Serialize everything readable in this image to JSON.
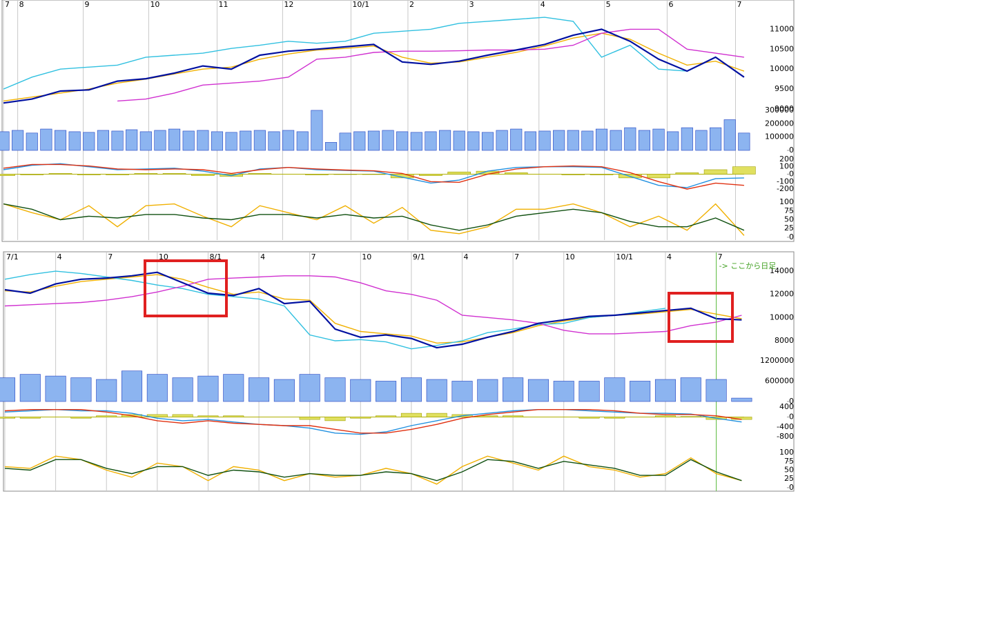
{
  "chart_data": [
    {
      "type": "line",
      "xlim": [
        0,
        277
      ],
      "ylim": [
        9000,
        11700
      ],
      "yticks": [
        9000,
        9500,
        10000,
        10500,
        11000
      ],
      "xticks": [
        {
          "value": 0,
          "label": "7"
        },
        {
          "value": 5,
          "label": "8"
        },
        {
          "value": 28,
          "label": "9"
        },
        {
          "value": 51,
          "label": "10"
        },
        {
          "value": 75,
          "label": "11"
        },
        {
          "value": 98,
          "label": "12"
        },
        {
          "value": 122,
          "label": "10/1"
        },
        {
          "value": 142,
          "label": "2"
        },
        {
          "value": 163,
          "label": "3"
        },
        {
          "value": 188,
          "label": "4"
        },
        {
          "value": 211,
          "label": "5"
        },
        {
          "value": 233,
          "label": "6"
        },
        {
          "value": 257,
          "label": "7"
        }
      ],
      "x": [
        0,
        10,
        20,
        30,
        40,
        50,
        60,
        70,
        80,
        90,
        100,
        110,
        120,
        130,
        140,
        150,
        160,
        170,
        180,
        190,
        200,
        210,
        220,
        230,
        240,
        250,
        260
      ],
      "series": [
        {
          "color": "#f0b000",
          "values": [
            9200,
            9300,
            9400,
            9500,
            9650,
            9750,
            9880,
            10000,
            10050,
            10250,
            10380,
            10480,
            10520,
            10580,
            10300,
            10150,
            10180,
            10300,
            10420,
            10580,
            10780,
            10900,
            10750,
            10400,
            10100,
            10200,
            9950
          ]
        },
        {
          "color": "#30c0e0",
          "values": [
            9500,
            9800,
            10000,
            10050,
            10100,
            10300,
            10350,
            10400,
            10520,
            10600,
            10700,
            10650,
            10700,
            10900,
            10950,
            11000,
            11150,
            11200,
            11250,
            11300,
            11200,
            10300,
            10600,
            10000,
            9950,
            null,
            null
          ]
        },
        {
          "color": "#d030d0",
          "values": [
            null,
            null,
            null,
            null,
            9200,
            9250,
            9400,
            9600,
            9650,
            9700,
            9800,
            10250,
            10300,
            10420,
            10450,
            10450,
            10460,
            10480,
            10480,
            10500,
            10600,
            10900,
            11000,
            11000,
            10500,
            10400,
            10300
          ]
        },
        {
          "color": "#0010a0",
          "values": [
            9150,
            9250,
            9450,
            9480,
            9700,
            9760,
            9900,
            10080,
            10000,
            10350,
            10450,
            10500,
            10560,
            10620,
            10180,
            10120,
            10200,
            10350,
            10480,
            10620,
            10850,
            11000,
            10700,
            10250,
            9950,
            10300,
            9800
          ]
        }
      ]
    },
    {
      "type": "bar",
      "xlim": [
        0,
        277
      ],
      "ylim": [
        0,
        310000
      ],
      "yticks": [
        0,
        100000,
        200000,
        300000
      ],
      "x": [
        0,
        5,
        10,
        15,
        20,
        25,
        30,
        35,
        40,
        45,
        50,
        55,
        60,
        65,
        70,
        75,
        80,
        85,
        90,
        95,
        100,
        105,
        110,
        115,
        120,
        125,
        130,
        135,
        140,
        145,
        150,
        155,
        160,
        165,
        170,
        175,
        180,
        185,
        190,
        195,
        200,
        205,
        210,
        215,
        220,
        225,
        230,
        235,
        240,
        245,
        250,
        255,
        260
      ],
      "series": [
        {
          "color": "#8cb4f0",
          "values": [
            140000,
            150000,
            130000,
            160000,
            150000,
            140000,
            135000,
            150000,
            145000,
            155000,
            140000,
            150000,
            160000,
            145000,
            150000,
            140000,
            135000,
            145000,
            150000,
            140000,
            150000,
            140000,
            300000,
            60000,
            130000,
            140000,
            145000,
            150000,
            140000,
            135000,
            140000,
            150000,
            145000,
            140000,
            135000,
            150000,
            160000,
            140000,
            145000,
            150000,
            150000,
            145000,
            160000,
            150000,
            170000,
            150000,
            160000,
            140000,
            170000,
            150000,
            170000,
            230000,
            130000
          ]
        }
      ]
    },
    {
      "type": "line",
      "xlim": [
        0,
        277
      ],
      "ylim": [
        -255,
        245
      ],
      "yticks": [
        -200,
        -100,
        0,
        100,
        200
      ],
      "x": [
        0,
        10,
        20,
        30,
        40,
        50,
        60,
        70,
        80,
        90,
        100,
        110,
        120,
        130,
        140,
        150,
        160,
        170,
        180,
        190,
        200,
        210,
        220,
        230,
        240,
        250,
        260
      ],
      "series": [
        {
          "type": "bar",
          "color": "#e0e060",
          "values": [
            -20,
            -10,
            10,
            -10,
            -10,
            10,
            10,
            -20,
            -30,
            10,
            0,
            -10,
            -5,
            -5,
            -50,
            -20,
            30,
            40,
            20,
            0,
            -10,
            -10,
            -50,
            -50,
            20,
            60,
            100
          ]
        },
        {
          "color": "#2090e0",
          "values": [
            60,
            120,
            140,
            100,
            60,
            70,
            80,
            40,
            -20,
            70,
            90,
            60,
            50,
            40,
            -40,
            -120,
            -80,
            40,
            90,
            100,
            100,
            90,
            -30,
            -150,
            -180,
            -60,
            -50
          ]
        },
        {
          "color": "#e03010",
          "values": [
            80,
            130,
            130,
            110,
            70,
            60,
            70,
            60,
            10,
            60,
            90,
            70,
            55,
            45,
            10,
            -100,
            -110,
            0,
            70,
            100,
            110,
            100,
            20,
            -100,
            -200,
            -120,
            -150
          ]
        }
      ]
    },
    {
      "type": "line",
      "xlim": [
        0,
        277
      ],
      "ylim": [
        -8,
        110
      ],
      "yticks": [
        0,
        25,
        50,
        75,
        100
      ],
      "x": [
        0,
        10,
        20,
        30,
        40,
        50,
        60,
        70,
        80,
        90,
        100,
        110,
        120,
        130,
        140,
        150,
        160,
        170,
        180,
        190,
        200,
        210,
        220,
        230,
        240,
        250,
        260
      ],
      "series": [
        {
          "color": "#f0b000",
          "values": [
            95,
            70,
            50,
            90,
            30,
            90,
            95,
            60,
            30,
            90,
            70,
            50,
            90,
            40,
            85,
            20,
            10,
            30,
            80,
            80,
            95,
            70,
            30,
            60,
            20,
            95,
            5
          ]
        },
        {
          "color": "#105010",
          "values": [
            95,
            80,
            50,
            60,
            55,
            65,
            65,
            55,
            50,
            65,
            65,
            55,
            65,
            55,
            60,
            35,
            20,
            35,
            60,
            70,
            80,
            70,
            45,
            30,
            30,
            55,
            20
          ]
        }
      ]
    },
    {
      "type": "line",
      "xlim": [
        0,
        155
      ],
      "ylim": [
        6570,
        15490
      ],
      "yticks": [
        8000,
        10000,
        12000,
        14000
      ],
      "xticks": [
        {
          "value": 0,
          "label": "7/1"
        },
        {
          "value": 10,
          "label": "4"
        },
        {
          "value": 20,
          "label": "7"
        },
        {
          "value": 30,
          "label": "10"
        },
        {
          "value": 40,
          "label": "8/1"
        },
        {
          "value": 50,
          "label": "4"
        },
        {
          "value": 60,
          "label": "7"
        },
        {
          "value": 70,
          "label": "10"
        },
        {
          "value": 80,
          "label": "9/1"
        },
        {
          "value": 90,
          "label": "4"
        },
        {
          "value": 100,
          "label": "7"
        },
        {
          "value": 110,
          "label": "10"
        },
        {
          "value": 120,
          "label": "10/1"
        },
        {
          "value": 130,
          "label": "4"
        },
        {
          "value": 140,
          "label": "7"
        }
      ],
      "annotation": {
        "text": "-> ここから日足",
        "x": 140
      },
      "x": [
        0,
        5,
        10,
        15,
        20,
        25,
        30,
        35,
        40,
        45,
        50,
        55,
        60,
        65,
        70,
        75,
        80,
        85,
        90,
        95,
        100,
        105,
        110,
        115,
        120,
        125,
        130,
        135,
        140,
        145
      ],
      "series": [
        {
          "color": "#f0b000",
          "values": [
            12300,
            12200,
            12700,
            13100,
            13300,
            13500,
            13700,
            13300,
            12600,
            12000,
            12200,
            11600,
            11500,
            9500,
            8800,
            8600,
            8400,
            7800,
            7900,
            8300,
            8700,
            9300,
            9700,
            10000,
            10200,
            10300,
            10500,
            10700,
            10300,
            9900
          ]
        },
        {
          "color": "#30c0e0",
          "values": [
            13300,
            13700,
            14000,
            13800,
            13500,
            13200,
            12800,
            12500,
            12000,
            11800,
            11600,
            11000,
            8500,
            8000,
            8100,
            7900,
            7300,
            7600,
            8000,
            8700,
            9000,
            9400,
            9500,
            10000,
            10200,
            10500,
            10800,
            null,
            null,
            null
          ]
        },
        {
          "color": "#d030d0",
          "values": [
            11000,
            11100,
            11200,
            11300,
            11500,
            11800,
            12200,
            12700,
            13300,
            13400,
            13500,
            13600,
            13600,
            13500,
            13000,
            12300,
            12000,
            11500,
            10200,
            10000,
            9800,
            9500,
            8900,
            8600,
            8600,
            8700,
            8800,
            9300,
            9600,
            10200
          ]
        },
        {
          "color": "#0010a0",
          "values": [
            12400,
            12100,
            12900,
            13300,
            13400,
            13600,
            13900,
            13000,
            12100,
            11900,
            12500,
            11200,
            11400,
            9000,
            8300,
            8500,
            8200,
            7400,
            7700,
            8300,
            8800,
            9500,
            9800,
            10100,
            10200,
            10400,
            10600,
            10800,
            9900,
            9800
          ]
        }
      ]
    },
    {
      "type": "bar",
      "xlim": [
        0,
        155
      ],
      "ylim": [
        0,
        1260000
      ],
      "yticks": [
        0,
        600000,
        1200000
      ],
      "x": [
        0,
        5,
        10,
        15,
        20,
        25,
        30,
        35,
        40,
        45,
        50,
        55,
        60,
        65,
        70,
        75,
        80,
        85,
        90,
        95,
        100,
        105,
        110,
        115,
        120,
        125,
        130,
        135,
        140,
        145
      ],
      "series": [
        {
          "color": "#8cb4f0",
          "values": [
            700000,
            800000,
            750000,
            700000,
            650000,
            900000,
            800000,
            700000,
            750000,
            800000,
            700000,
            650000,
            800000,
            700000,
            650000,
            600000,
            700000,
            650000,
            600000,
            650000,
            700000,
            650000,
            600000,
            600000,
            700000,
            600000,
            650000,
            700000,
            650000,
            100000
          ]
        }
      ]
    },
    {
      "type": "line",
      "xlim": [
        0,
        155
      ],
      "ylim": [
        -1130,
        460
      ],
      "yticks": [
        -800,
        -400,
        0,
        400
      ],
      "x": [
        0,
        5,
        10,
        15,
        20,
        25,
        30,
        35,
        40,
        45,
        50,
        55,
        60,
        65,
        70,
        75,
        80,
        85,
        90,
        95,
        100,
        105,
        110,
        115,
        120,
        125,
        130,
        135,
        140,
        145
      ],
      "series": [
        {
          "type": "bar",
          "color": "#e0e060",
          "values": [
            -50,
            -50,
            0,
            -50,
            50,
            100,
            100,
            100,
            50,
            50,
            0,
            0,
            -100,
            -150,
            -50,
            50,
            150,
            150,
            100,
            50,
            50,
            0,
            0,
            -50,
            -50,
            0,
            50,
            20,
            -100,
            -100
          ]
        },
        {
          "color": "#2090e0",
          "values": [
            200,
            250,
            300,
            250,
            250,
            150,
            -50,
            -150,
            -100,
            -200,
            -300,
            -350,
            -450,
            -650,
            -700,
            -600,
            -350,
            -150,
            50,
            150,
            250,
            300,
            300,
            250,
            200,
            150,
            150,
            120,
            -50,
            -200
          ]
        },
        {
          "color": "#e03010",
          "values": [
            250,
            300,
            300,
            300,
            200,
            50,
            -150,
            -250,
            -150,
            -250,
            -300,
            -350,
            -350,
            -500,
            -650,
            -650,
            -500,
            -300,
            -50,
            100,
            200,
            300,
            300,
            300,
            250,
            150,
            100,
            100,
            50,
            -100
          ]
        }
      ]
    },
    {
      "type": "line",
      "xlim": [
        0,
        155
      ],
      "ylim": [
        -10,
        108
      ],
      "yticks": [
        0,
        25,
        50,
        75,
        100
      ],
      "x": [
        0,
        5,
        10,
        15,
        20,
        25,
        30,
        35,
        40,
        45,
        50,
        55,
        60,
        65,
        70,
        75,
        80,
        85,
        90,
        95,
        100,
        105,
        110,
        115,
        120,
        125,
        130,
        135,
        140,
        145
      ],
      "series": [
        {
          "color": "#f0b000",
          "values": [
            60,
            55,
            90,
            80,
            50,
            30,
            70,
            60,
            20,
            60,
            50,
            20,
            40,
            30,
            35,
            55,
            40,
            10,
            60,
            90,
            70,
            50,
            90,
            60,
            50,
            30,
            40,
            85,
            40,
            20
          ]
        },
        {
          "color": "#105010",
          "values": [
            55,
            50,
            80,
            80,
            55,
            40,
            60,
            60,
            35,
            50,
            45,
            30,
            40,
            35,
            35,
            45,
            40,
            20,
            45,
            80,
            75,
            55,
            75,
            65,
            55,
            35,
            35,
            80,
            45,
            20
          ]
        }
      ]
    }
  ]
}
